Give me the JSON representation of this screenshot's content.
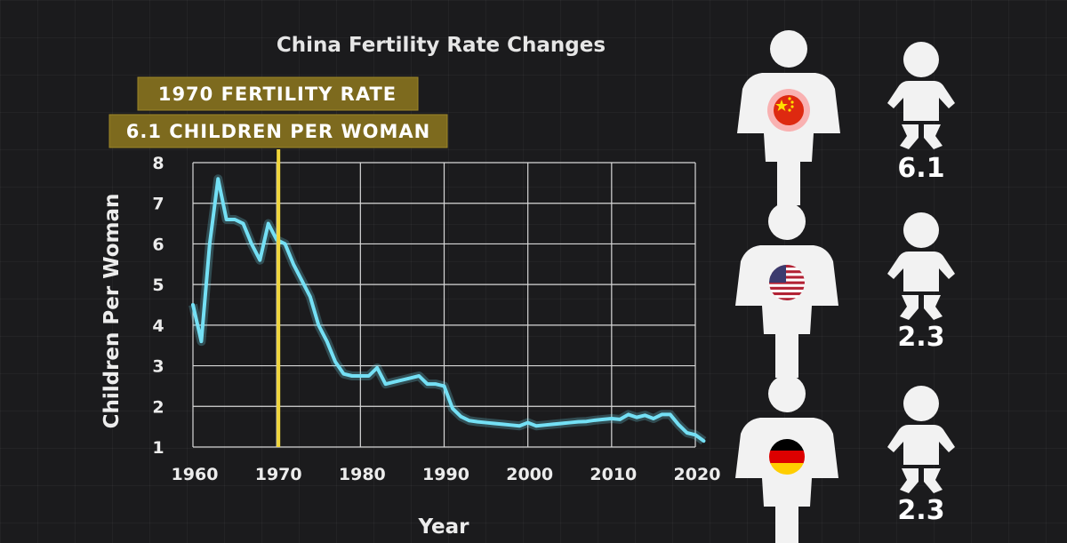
{
  "chart_data": {
    "type": "line",
    "title": "China Fertility Rate Changes",
    "xlabel": "Year",
    "ylabel": "Children Per Woman",
    "xlim": [
      1960,
      2020
    ],
    "ylim": [
      1,
      8
    ],
    "x_ticks": [
      "1960",
      "1970",
      "1980",
      "1990",
      "2000",
      "2010",
      "2020"
    ],
    "y_ticks": [
      "1",
      "2",
      "3",
      "4",
      "5",
      "6",
      "7",
      "8"
    ],
    "series": [
      {
        "name": "China",
        "x": [
          1960,
          1961,
          1962,
          1963,
          1964,
          1965,
          1966,
          1967,
          1968,
          1969,
          1970,
          1971,
          1972,
          1973,
          1974,
          1975,
          1976,
          1977,
          1978,
          1979,
          1980,
          1981,
          1982,
          1983,
          1984,
          1985,
          1986,
          1987,
          1988,
          1989,
          1990,
          1991,
          1992,
          1993,
          1994,
          1995,
          1996,
          1997,
          1998,
          1999,
          2000,
          2001,
          2002,
          2003,
          2004,
          2005,
          2006,
          2007,
          2008,
          2009,
          2010,
          2011,
          2012,
          2013,
          2014,
          2015,
          2016,
          2017,
          2018,
          2019,
          2020,
          2021
        ],
        "values": [
          4.5,
          3.6,
          6.0,
          7.6,
          6.6,
          6.6,
          6.5,
          6.0,
          5.6,
          6.5,
          6.1,
          6.0,
          5.5,
          5.1,
          4.7,
          4.0,
          3.6,
          3.1,
          2.8,
          2.75,
          2.75,
          2.75,
          2.95,
          2.55,
          2.6,
          2.65,
          2.7,
          2.75,
          2.55,
          2.55,
          2.5,
          1.95,
          1.75,
          1.65,
          1.62,
          1.6,
          1.58,
          1.56,
          1.54,
          1.52,
          1.6,
          1.52,
          1.54,
          1.56,
          1.58,
          1.6,
          1.62,
          1.63,
          1.66,
          1.68,
          1.7,
          1.68,
          1.8,
          1.73,
          1.78,
          1.7,
          1.8,
          1.8,
          1.55,
          1.35,
          1.3,
          1.15
        ]
      }
    ],
    "highlight": {
      "year": 1970,
      "value": 6.1
    }
  },
  "banner": {
    "line1": "1970 FERTILITY RATE",
    "line2": "6.1 CHILDREN PER WOMAN"
  },
  "comparison": [
    {
      "country": "China",
      "flag": "china-flag",
      "value": "6.1"
    },
    {
      "country": "United States",
      "flag": "usa-flag",
      "value": "2.3"
    },
    {
      "country": "Germany",
      "flag": "germany-flag",
      "value": "2.3"
    }
  ],
  "colors": {
    "line": "#74e0f5",
    "marker": "#f0d53a",
    "banner": "#7d6a1e"
  }
}
